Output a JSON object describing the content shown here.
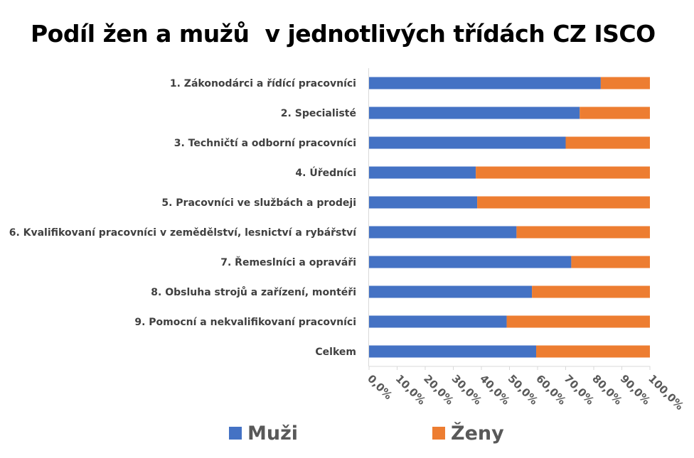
{
  "title": "Podíl žen a mužů  v jednotlivých třídách CZ ISCO",
  "colors": {
    "muzi": "#4472C4",
    "zeny": "#ED7D31"
  },
  "chart_data": {
    "type": "bar",
    "orientation": "horizontal",
    "stacked": "percent",
    "title": "Podíl žen a mužů  v jednotlivých třídách CZ ISCO",
    "categories": [
      "1. Zákonodárci a řídící pracovníci",
      "2. Specialisté",
      "3. Techničtí a odborní pracovníci",
      "4. Úředníci",
      "5. Pracovníci ve službách a prodeji",
      "6. Kvalifikovaní pracovníci v zemědělství, lesnictví a rybářství",
      "7. Řemeslníci a opraváři",
      "8. Obsluha strojů a zařízení, montéři",
      "9. Pomocní a nekvalifikovaní pracovníci",
      "Celkem"
    ],
    "series": [
      {
        "name": "Muži",
        "color": "#4472C4",
        "values": [
          82.5,
          75.0,
          70.0,
          38.0,
          38.5,
          52.5,
          72.0,
          58.0,
          49.0,
          59.5
        ]
      },
      {
        "name": "Ženy",
        "color": "#ED7D31",
        "values": [
          17.5,
          25.0,
          30.0,
          62.0,
          61.5,
          47.5,
          28.0,
          42.0,
          51.0,
          40.5
        ]
      }
    ],
    "xlim": [
      0,
      100
    ],
    "xticks": [
      "0,0%",
      "10,0%",
      "20,0%",
      "30,0%",
      "40,0%",
      "50,0%",
      "60,0%",
      "70,0%",
      "80,0%",
      "90,0%",
      "100,0%"
    ],
    "legend_position": "bottom",
    "grid": false
  }
}
